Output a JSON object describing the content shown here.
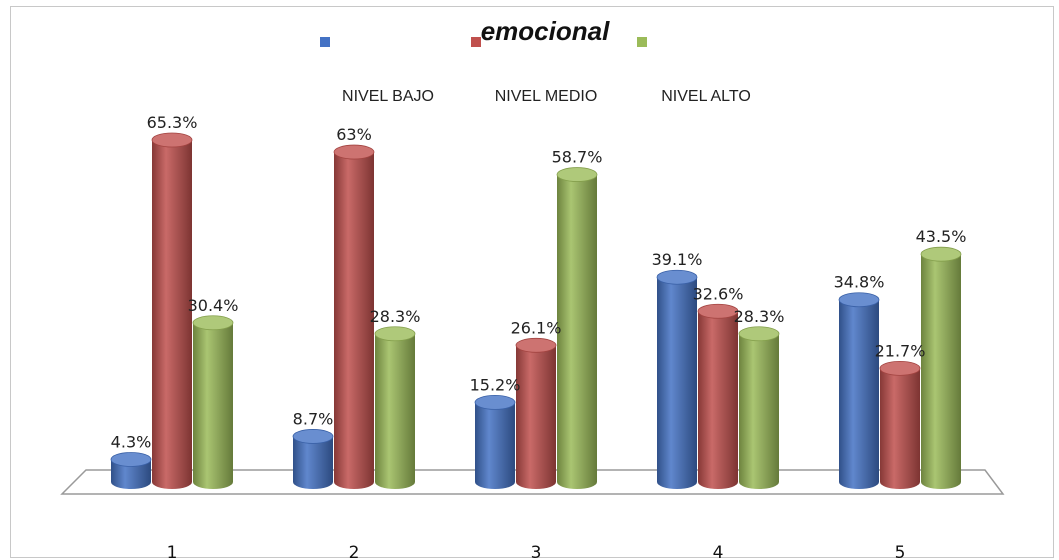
{
  "chart_data": {
    "type": "bar",
    "title": "emocional",
    "xlabel": "",
    "ylabel": "",
    "categories": [
      "1",
      "2",
      "3",
      "4",
      "5"
    ],
    "series": [
      {
        "name": "NIVEL BAJO",
        "color": "#4472C4",
        "values": [
          4.3,
          8.7,
          15.2,
          39.1,
          34.8
        ],
        "labels": [
          "4.3%",
          "8.7%",
          "15.2%",
          "39.1%",
          "34.8%"
        ]
      },
      {
        "name": "NIVEL MEDIO",
        "color": "#C0504D",
        "values": [
          65.3,
          63,
          26.1,
          32.6,
          21.7
        ],
        "labels": [
          "65.3%",
          "63%",
          "26.1%",
          "32.6%",
          "21.7%"
        ]
      },
      {
        "name": "NIVEL ALTO",
        "color": "#9BBB59",
        "values": [
          30.4,
          28.3,
          58.7,
          28.3,
          43.5
        ],
        "labels": [
          "30.4%",
          "28.3%",
          "58.7%",
          "28.3%",
          "43.5%"
        ]
      }
    ],
    "ylim": [
      0,
      65.3
    ],
    "grid": false,
    "legend_position": "top"
  }
}
